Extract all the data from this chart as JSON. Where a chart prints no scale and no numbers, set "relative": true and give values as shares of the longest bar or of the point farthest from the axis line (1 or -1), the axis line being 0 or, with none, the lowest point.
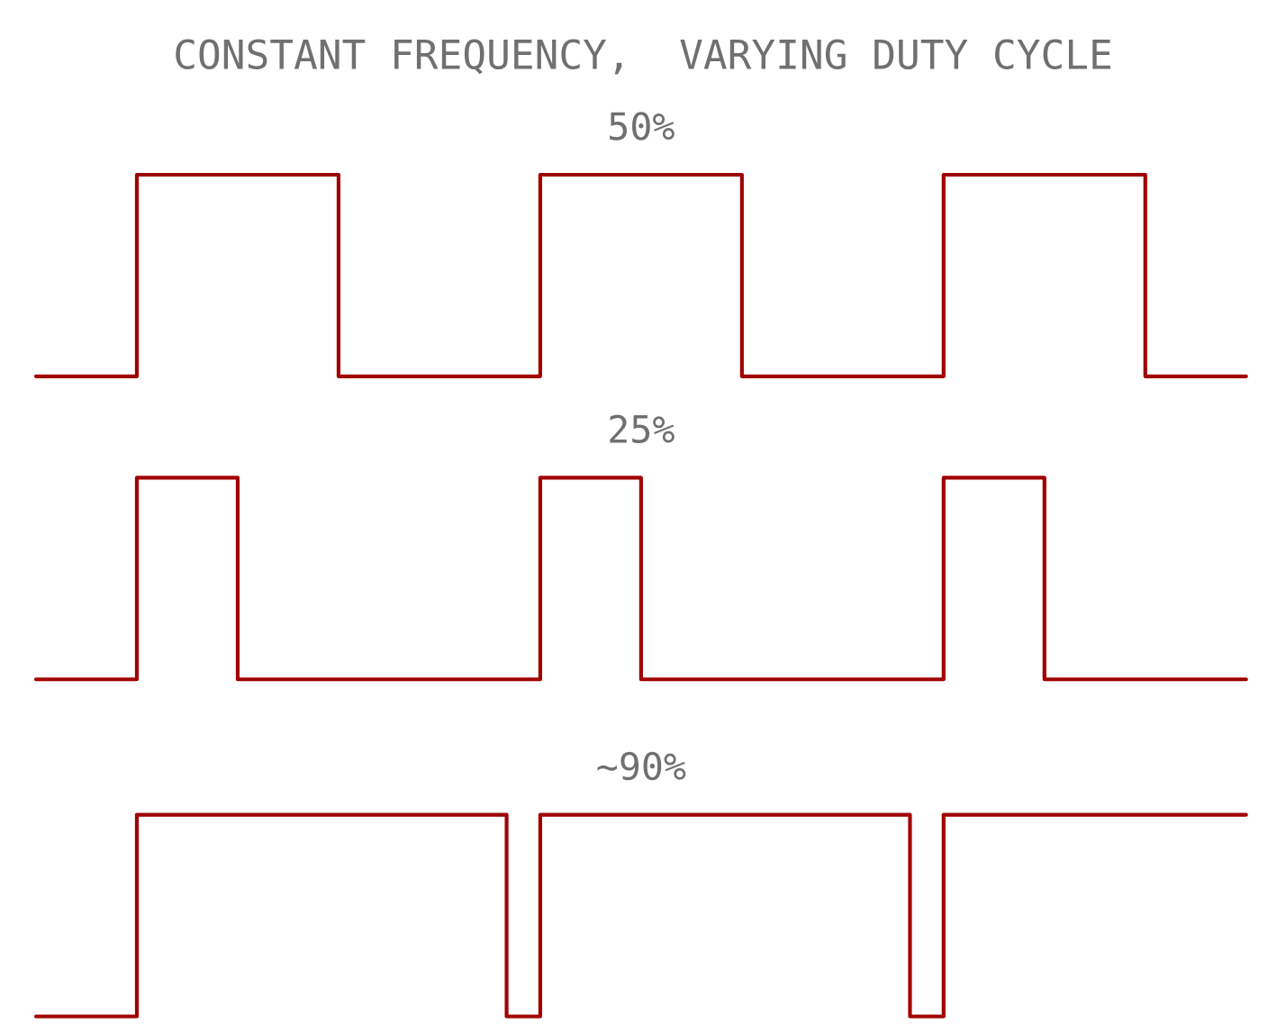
{
  "chart_data": [
    {
      "type": "step",
      "relative": true,
      "title": "CONSTANT FREQUENCY,  VARYING DUTY CYCLE",
      "subtitle": "50%",
      "categories": [
        null,
        null,
        null,
        null,
        null,
        null,
        null,
        null,
        null,
        null,
        null,
        null,
        null,
        null,
        null,
        null,
        null,
        null,
        null,
        null,
        null,
        null,
        null,
        null,
        null,
        null,
        null,
        null,
        null,
        null,
        null,
        null,
        null,
        null,
        null,
        null,
        null
      ],
      "series": [
        {
          "color": "#a00000",
          "values": [
            0,
            0,
            0,
            1,
            1,
            1,
            1,
            1,
            1,
            0,
            0,
            0,
            0,
            0,
            0,
            1,
            1,
            1,
            1,
            1,
            1,
            0,
            0,
            0,
            0,
            0,
            0,
            1,
            1,
            1,
            1,
            1,
            1,
            0,
            0,
            0,
            0
          ]
        }
      ]
    },
    {
      "type": "step",
      "relative": true,
      "title": "25%",
      "categories": [
        null,
        null,
        null,
        null,
        null,
        null,
        null,
        null,
        null,
        null,
        null,
        null,
        null,
        null,
        null,
        null,
        null,
        null,
        null,
        null,
        null,
        null,
        null,
        null,
        null,
        null,
        null,
        null,
        null,
        null,
        null,
        null,
        null,
        null,
        null,
        null,
        null
      ],
      "series": [
        {
          "color": "#a00000",
          "values": [
            0,
            0,
            0,
            1,
            1,
            1,
            0,
            0,
            0,
            0,
            0,
            0,
            0,
            0,
            0,
            1,
            1,
            1,
            0,
            0,
            0,
            0,
            0,
            0,
            0,
            0,
            0,
            1,
            1,
            1,
            0,
            0,
            0,
            0,
            0,
            0,
            0
          ]
        }
      ]
    },
    {
      "type": "step",
      "relative": true,
      "title": "~90%",
      "categories": [
        null,
        null,
        null,
        null,
        null,
        null,
        null,
        null,
        null,
        null,
        null,
        null,
        null,
        null,
        null,
        null,
        null,
        null,
        null,
        null,
        null,
        null,
        null,
        null,
        null,
        null,
        null,
        null,
        null,
        null,
        null,
        null,
        null,
        null,
        null,
        null,
        null
      ],
      "series": [
        {
          "color": "#a00000",
          "values": [
            0,
            0,
            0,
            1,
            1,
            1,
            1,
            1,
            1,
            1,
            1,
            1,
            1,
            1,
            0,
            1,
            1,
            1,
            1,
            1,
            1,
            1,
            1,
            1,
            1,
            1,
            0,
            1,
            1,
            1,
            1,
            1,
            1,
            1,
            1,
            1,
            1
          ]
        }
      ]
    }
  ]
}
